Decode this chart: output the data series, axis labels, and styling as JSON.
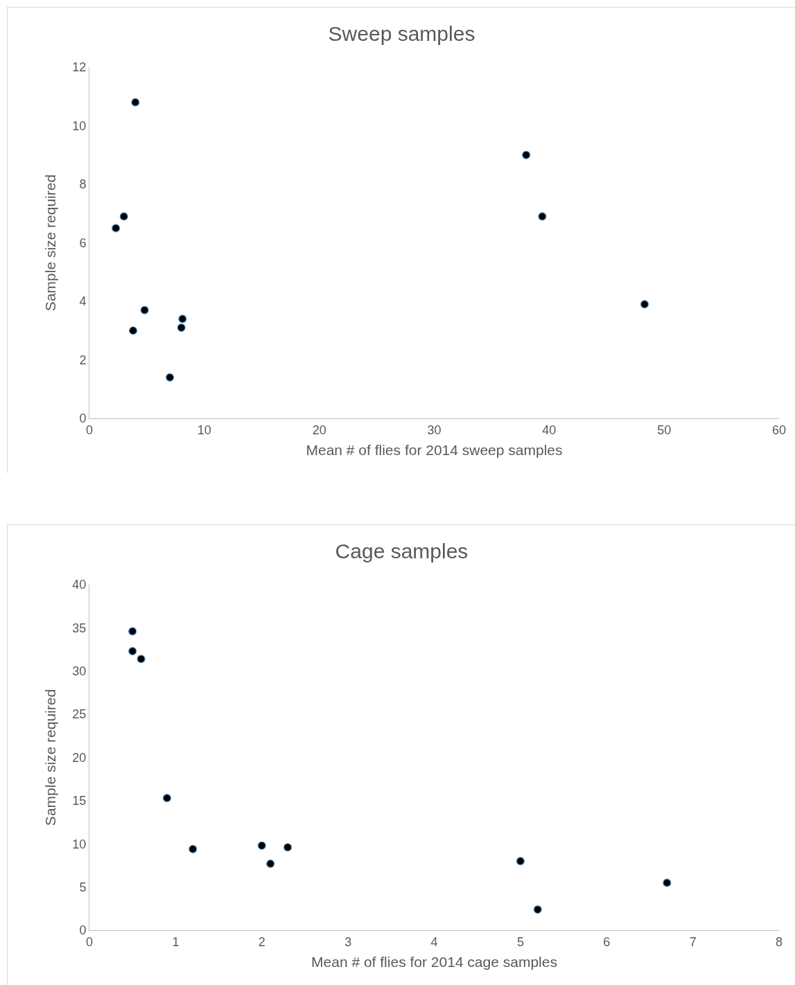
{
  "chart_data": [
    {
      "type": "scatter",
      "title": "Sweep samples",
      "xlabel": "Mean # of flies for 2014 sweep samples",
      "ylabel": "Sample size required",
      "x": [
        4.0,
        2.3,
        3.0,
        3.8,
        4.8,
        7.0,
        8.0,
        8.1,
        38.0,
        39.4,
        48.3
      ],
      "values": [
        10.8,
        6.5,
        6.9,
        3.0,
        3.7,
        1.4,
        3.1,
        3.4,
        9.0,
        6.9,
        3.9
      ],
      "color": "#000000",
      "marker": "circle",
      "xlim": [
        0,
        60
      ],
      "xticks": [
        0,
        10,
        20,
        30,
        40,
        50,
        60
      ],
      "ylim": [
        0,
        12
      ],
      "yticks": [
        0,
        2,
        4,
        6,
        8,
        10,
        12
      ],
      "grid": false
    },
    {
      "type": "scatter",
      "title": "Cage samples",
      "xlabel": "Mean # of flies for 2014 cage samples",
      "ylabel": "Sample size required",
      "x": [
        0.5,
        0.5,
        0.6,
        0.9,
        1.2,
        2.0,
        2.1,
        2.3,
        5.0,
        5.2,
        6.7
      ],
      "values": [
        34.6,
        32.3,
        31.4,
        15.3,
        9.4,
        9.8,
        7.7,
        9.6,
        8.0,
        2.4,
        5.5
      ],
      "color": "#000000",
      "marker": "circle",
      "xlim": [
        0,
        8
      ],
      "xticks": [
        0,
        1,
        2,
        3,
        4,
        5,
        6,
        7,
        8
      ],
      "ylim": [
        0,
        40
      ],
      "yticks": [
        0,
        5,
        10,
        15,
        20,
        25,
        30,
        35,
        40
      ],
      "grid": false
    }
  ]
}
